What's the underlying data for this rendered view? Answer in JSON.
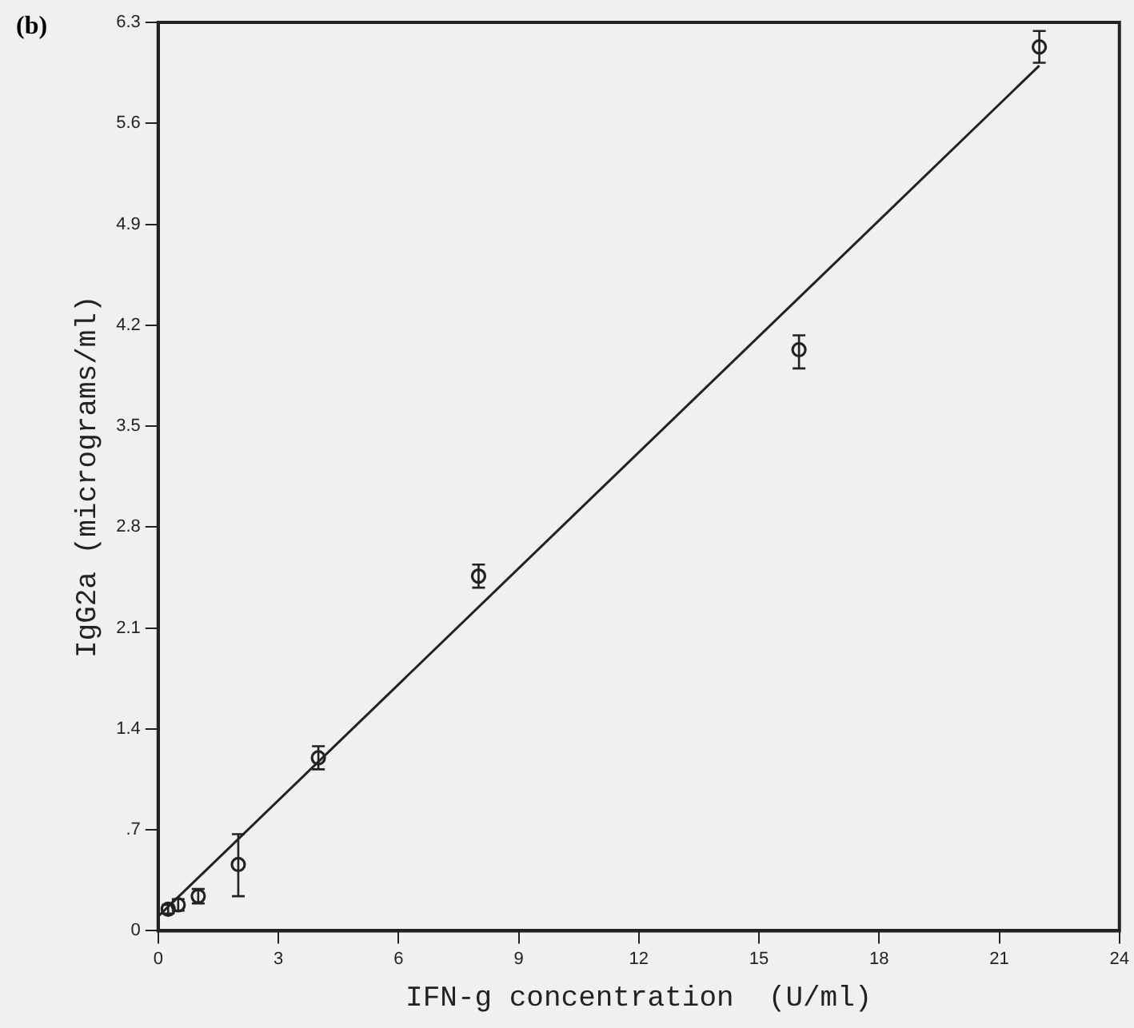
{
  "chart_data": {
    "type": "scatter",
    "xlabel": "IFN-g concentration  (U/ml)",
    "ylabel": "IgG2a (micrograms/ml)",
    "annotations": [
      "(b)"
    ],
    "xlim": [
      0,
      24
    ],
    "xticks": [
      0,
      3,
      6,
      9,
      12,
      15,
      18,
      21,
      24
    ],
    "ylim": [
      0,
      6.3
    ],
    "yticks": [
      0,
      {
        "value": 0.7,
        "label": ".7"
      },
      1.4,
      2.1,
      2.8,
      3.5,
      4.2,
      4.9,
      5.6,
      6.3
    ],
    "grid": false,
    "legend": false,
    "series": [
      {
        "marker": "circle",
        "color": "#222222",
        "x": [
          0.25,
          0.5,
          1,
          2,
          4,
          8,
          16,
          22
        ],
        "values": [
          0.15,
          0.18,
          0.24,
          0.46,
          1.2,
          2.46,
          4.03,
          6.13
        ],
        "errors": [
          0.03,
          0.04,
          0.05,
          [
            0.24,
            0.67
          ],
          0.08,
          0.08,
          [
            3.9,
            4.13
          ],
          [
            6.02,
            6.24
          ]
        ]
      },
      {
        "type": "line",
        "marker": "none",
        "color": "#222222",
        "x": [
          0,
          22
        ],
        "values": [
          0.1,
          6.0
        ]
      }
    ]
  }
}
